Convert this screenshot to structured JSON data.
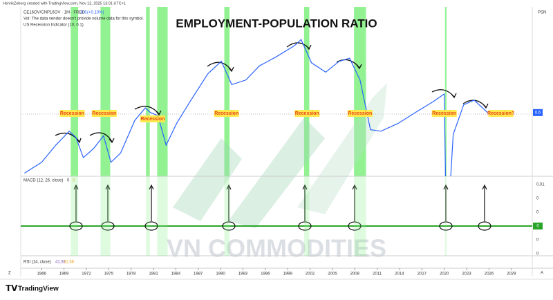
{
  "header": {
    "credit": "HenrikZeberg created with TradingView.com, Nov 12, 2025 13:01 UTC+1",
    "symbol": "CE16OV/CNP16OV · 1M · FRED",
    "last": "0.6",
    "change": "(+0.10%)",
    "volume_note": "Vol: The data vendor doesn't provide volume data for this symbol.",
    "indicator": "US Recession Indicator (10, 0.1)",
    "scale_label": "PSN"
  },
  "chart_data": {
    "type": "line",
    "title": "EMPLOYMENT-POPULATION RATIO",
    "x": [
      1963.7,
      1966,
      1967.9,
      1969.7,
      1970.6,
      1971.6,
      1973,
      1974.3,
      1975.3,
      1976.6,
      1978.5,
      1979.9,
      1980.6,
      1981.6,
      1982.7,
      1984.1,
      1985.9,
      1988.3,
      1990.1,
      1991.5,
      1993.4,
      1995.2,
      1997.5,
      1999.9,
      2000.8,
      2002.2,
      2004.1,
      2005.9,
      2007.3,
      2008.7,
      2010.1,
      2011.5,
      2013.8,
      2016.1,
      2018.5,
      2020.0,
      2020.3,
      2021.2,
      2022.6,
      2024.0,
      2025.8
    ],
    "series": [
      {
        "name": "CE16OV/CNP16OV",
        "color": "#2962ff",
        "values": [
          0.561,
          0.568,
          0.579,
          0.588,
          0.584,
          0.571,
          0.577,
          0.585,
          0.568,
          0.574,
          0.595,
          0.603,
          0.6,
          0.598,
          0.579,
          0.593,
          0.607,
          0.625,
          0.633,
          0.618,
          0.621,
          0.63,
          0.636,
          0.643,
          0.647,
          0.632,
          0.626,
          0.633,
          0.635,
          0.621,
          0.589,
          0.588,
          0.593,
          0.6,
          0.607,
          0.612,
          0.513,
          0.586,
          0.605,
          0.608,
          0.6
        ]
      }
    ],
    "price_label": 0.6,
    "recessions": [
      [
        1969.9,
        1970.9
      ],
      [
        1973.9,
        1975.2
      ],
      [
        1980.0,
        1980.5
      ],
      [
        1981.5,
        1982.9
      ],
      [
        1990.5,
        1991.2
      ],
      [
        2001.2,
        2001.9
      ],
      [
        2007.9,
        2009.5
      ],
      [
        2020.1,
        2020.3
      ]
    ],
    "recession_color": "#7ff07f",
    "annotations": [
      {
        "text": "Recession",
        "x": 1970.1
      },
      {
        "text": "Recession",
        "x": 1974.4
      },
      {
        "text": "Recession",
        "x": 1980.9
      },
      {
        "text": "Recession",
        "x": 1990.8
      },
      {
        "text": "Recession",
        "x": 2001.6
      },
      {
        "text": "Recession",
        "x": 2008.7
      },
      {
        "text": "Recession",
        "x": 2020.0
      },
      {
        "text": "Recession?",
        "x": 2027.6
      }
    ],
    "xlim": [
      1963.2,
      2031.8
    ],
    "ylim": [
      0.559,
      0.668
    ],
    "xticks": [
      1966,
      1969,
      1972,
      1975,
      1978,
      1981,
      1984,
      1987,
      1990,
      1993,
      1996,
      1999,
      2002,
      2005,
      2008,
      2011,
      2014,
      2017,
      2020,
      2023,
      2026,
      2029
    ]
  },
  "macd": {
    "label": "MACD (12, 26, close)",
    "values": [
      "0",
      "0"
    ],
    "axis_labels": [
      "0.01",
      "0",
      "0",
      "0",
      "0"
    ],
    "zero_label": "0"
  },
  "rsi": {
    "label": "RSI (14, close)",
    "values": [
      "41.92",
      "41.58"
    ]
  },
  "corner": {
    "left": "Z",
    "right": "A"
  },
  "watermark": "VN COMMODITIES",
  "footer": {
    "brand": "TradingView"
  }
}
